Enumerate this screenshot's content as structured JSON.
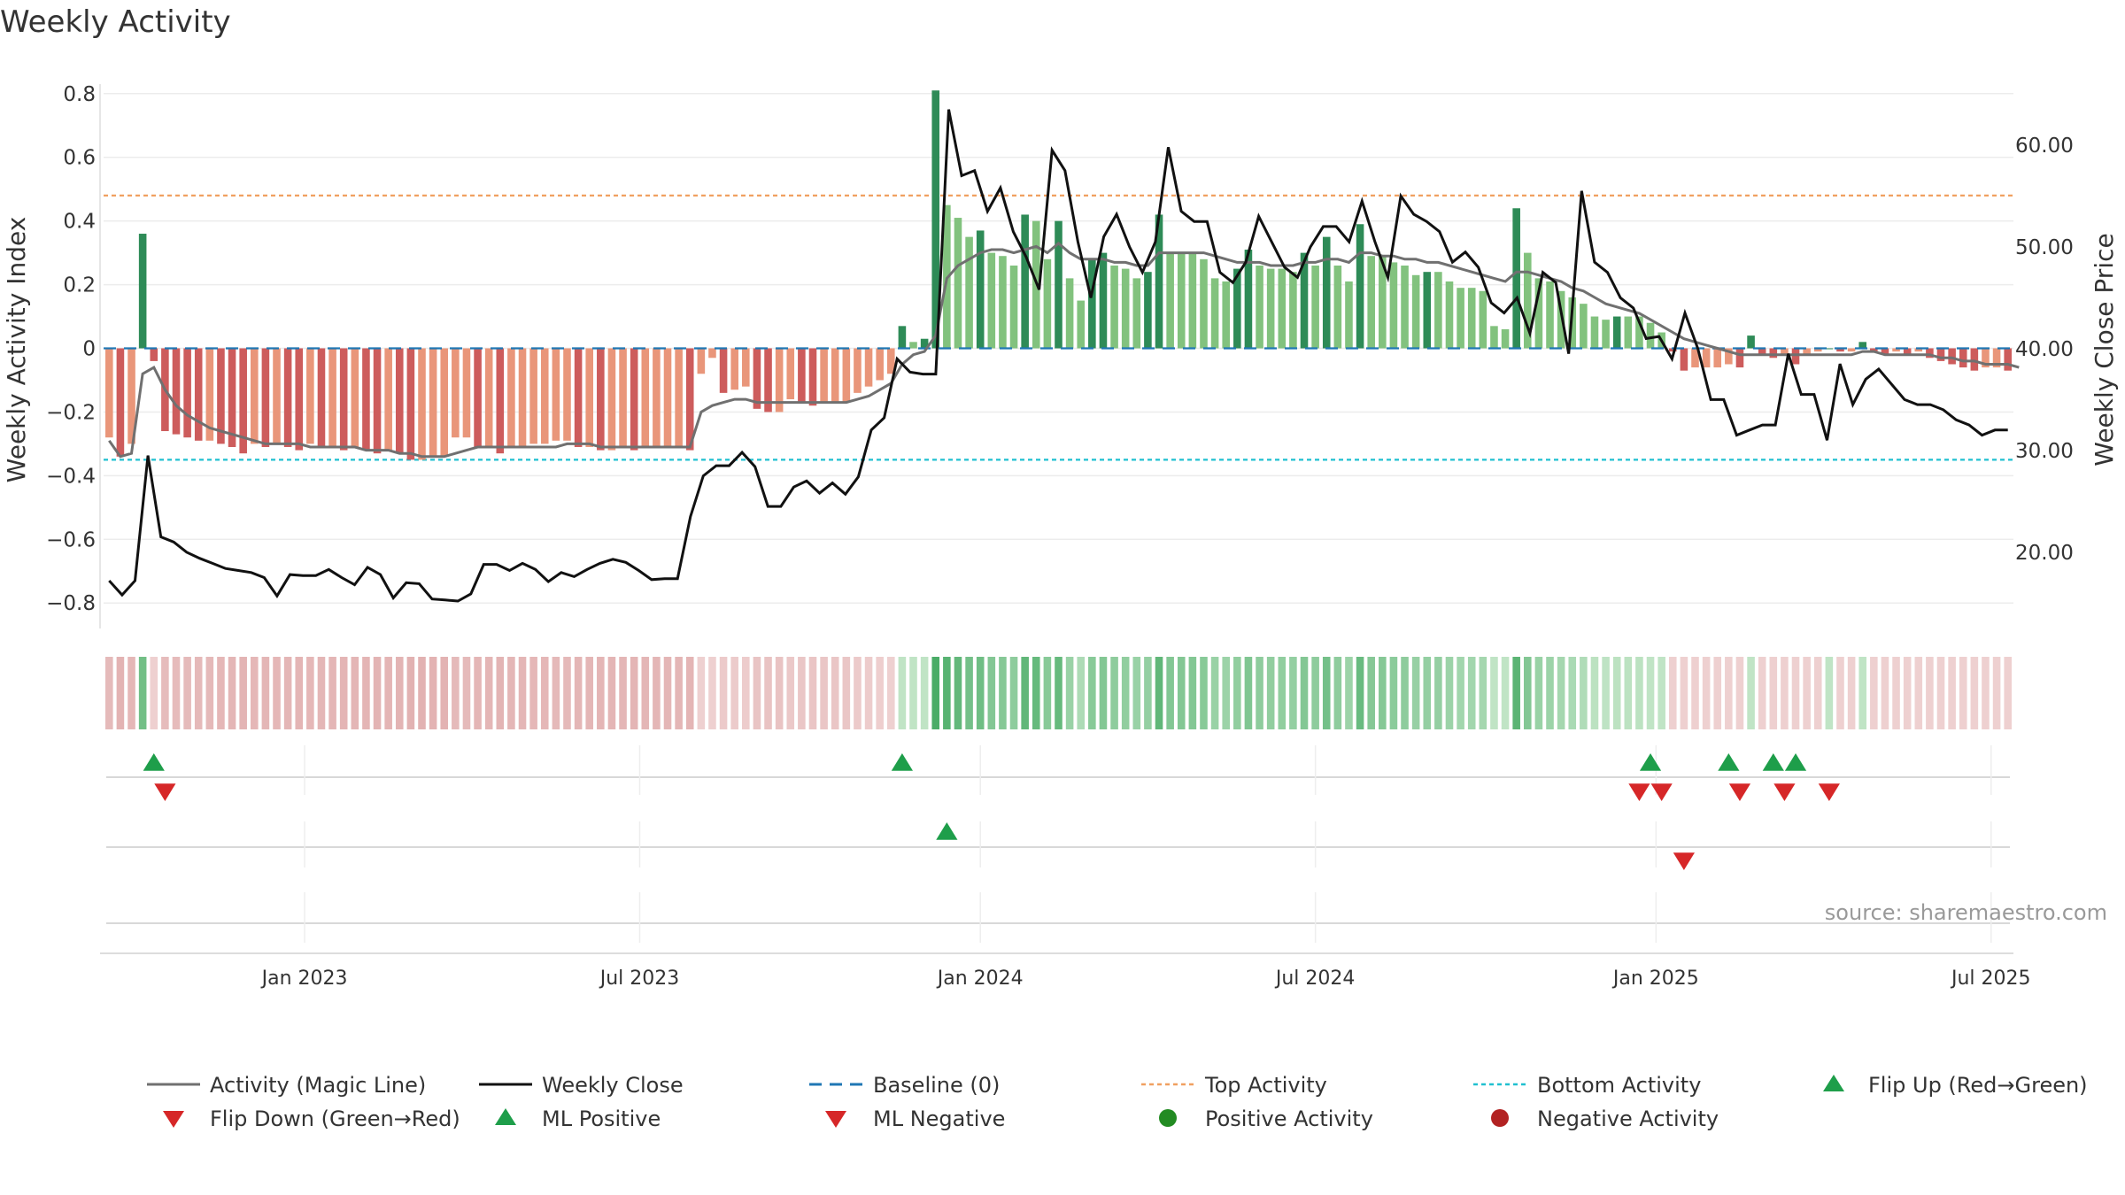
{
  "chart_data": {
    "type": "bar",
    "title": "Weekly Activity",
    "source": "source: sharemaestro.com",
    "ylabel": "Weekly Activity Index",
    "y2label": "Weekly Close Price",
    "ylim": [
      -0.88,
      0.83
    ],
    "y2lim": [
      12.5,
      66.0
    ],
    "yticks": [
      {
        "v": 0.8,
        "label": "0.8"
      },
      {
        "v": 0.6,
        "label": "0.6"
      },
      {
        "v": 0.4,
        "label": "0.4"
      },
      {
        "v": 0.2,
        "label": "0.2"
      },
      {
        "v": 0,
        "label": "0"
      },
      {
        "v": -0.2,
        "label": "−0.2"
      },
      {
        "v": -0.4,
        "label": "−0.4"
      },
      {
        "v": -0.6,
        "label": "−0.6"
      },
      {
        "v": -0.8,
        "label": "−0.8"
      }
    ],
    "y2ticks": [
      {
        "v": 60,
        "label": "60.00"
      },
      {
        "v": 50,
        "label": "50.00"
      },
      {
        "v": 40,
        "label": "40.00"
      },
      {
        "v": 30,
        "label": "30.00"
      },
      {
        "v": 20,
        "label": "20.00"
      }
    ],
    "xticks": [
      {
        "i": 17.5,
        "label": "Jan 2023"
      },
      {
        "i": 47.5,
        "label": "Jul 2023"
      },
      {
        "i": 78,
        "label": "Jan 2024"
      },
      {
        "i": 108,
        "label": "Jul 2024"
      },
      {
        "i": 138.5,
        "label": "Jan 2025"
      },
      {
        "i": 168.5,
        "label": "Jul 2025"
      }
    ],
    "top_activity": 0.48,
    "bottom_activity": -0.35,
    "baseline": 0,
    "activity": [
      -0.28,
      -0.34,
      -0.3,
      0.36,
      -0.04,
      -0.26,
      -0.27,
      -0.28,
      -0.29,
      -0.29,
      -0.3,
      -0.31,
      -0.33,
      -0.3,
      -0.31,
      -0.3,
      -0.31,
      -0.32,
      -0.3,
      -0.31,
      -0.31,
      -0.32,
      -0.31,
      -0.32,
      -0.33,
      -0.32,
      -0.33,
      -0.35,
      -0.35,
      -0.34,
      -0.34,
      -0.28,
      -0.28,
      -0.31,
      -0.31,
      -0.33,
      -0.31,
      -0.31,
      -0.3,
      -0.3,
      -0.29,
      -0.29,
      -0.31,
      -0.31,
      -0.32,
      -0.32,
      -0.31,
      -0.32,
      -0.31,
      -0.31,
      -0.31,
      -0.31,
      -0.32,
      -0.08,
      -0.03,
      -0.14,
      -0.13,
      -0.12,
      -0.19,
      -0.2,
      -0.2,
      -0.16,
      -0.17,
      -0.18,
      -0.17,
      -0.17,
      -0.17,
      -0.14,
      -0.12,
      -0.1,
      -0.08,
      0.07,
      0.02,
      0.03,
      0.81,
      0.45,
      0.41,
      0.35,
      0.37,
      0.3,
      0.29,
      0.26,
      0.42,
      0.4,
      0.28,
      0.4,
      0.22,
      0.15,
      0.28,
      0.3,
      0.26,
      0.25,
      0.22,
      0.24,
      0.42,
      0.3,
      0.3,
      0.3,
      0.28,
      0.22,
      0.21,
      0.25,
      0.31,
      0.26,
      0.25,
      0.25,
      0.24,
      0.3,
      0.26,
      0.35,
      0.26,
      0.21,
      0.39,
      0.29,
      0.29,
      0.27,
      0.26,
      0.23,
      0.24,
      0.24,
      0.21,
      0.19,
      0.19,
      0.18,
      0.07,
      0.06,
      0.44,
      0.3,
      0.22,
      0.21,
      0.18,
      0.16,
      0.14,
      0.1,
      0.09,
      0.1,
      0.1,
      0.1,
      0.08,
      0.05,
      -0.01,
      -0.07,
      -0.06,
      -0.06,
      -0.06,
      -0.05,
      -0.06,
      0.04,
      -0.02,
      -0.03,
      -0.02,
      -0.05,
      -0.02,
      -0.01,
      0.0,
      -0.01,
      -0.01,
      0.02,
      -0.01,
      -0.02,
      -0.01,
      -0.02,
      -0.01,
      -0.03,
      -0.04,
      -0.05,
      -0.06,
      -0.07,
      -0.06,
      -0.06,
      -0.07
    ],
    "magic_line": [
      -0.29,
      -0.34,
      -0.33,
      -0.08,
      -0.06,
      -0.13,
      -0.18,
      -0.21,
      -0.23,
      -0.25,
      -0.26,
      -0.27,
      -0.28,
      -0.29,
      -0.3,
      -0.3,
      -0.3,
      -0.3,
      -0.31,
      -0.31,
      -0.31,
      -0.31,
      -0.31,
      -0.32,
      -0.32,
      -0.32,
      -0.33,
      -0.33,
      -0.34,
      -0.34,
      -0.34,
      -0.33,
      -0.32,
      -0.31,
      -0.31,
      -0.31,
      -0.31,
      -0.31,
      -0.31,
      -0.31,
      -0.31,
      -0.3,
      -0.3,
      -0.3,
      -0.31,
      -0.31,
      -0.31,
      -0.31,
      -0.31,
      -0.31,
      -0.31,
      -0.31,
      -0.31,
      -0.2,
      -0.18,
      -0.17,
      -0.16,
      -0.16,
      -0.17,
      -0.17,
      -0.17,
      -0.17,
      -0.17,
      -0.17,
      -0.17,
      -0.17,
      -0.17,
      -0.16,
      -0.15,
      -0.13,
      -0.11,
      -0.05,
      -0.02,
      -0.01,
      0.04,
      0.22,
      0.26,
      0.28,
      0.3,
      0.31,
      0.31,
      0.3,
      0.31,
      0.32,
      0.3,
      0.33,
      0.3,
      0.28,
      0.28,
      0.28,
      0.27,
      0.27,
      0.26,
      0.26,
      0.3,
      0.3,
      0.3,
      0.3,
      0.3,
      0.29,
      0.28,
      0.27,
      0.27,
      0.27,
      0.26,
      0.26,
      0.26,
      0.27,
      0.27,
      0.28,
      0.28,
      0.27,
      0.3,
      0.3,
      0.29,
      0.29,
      0.28,
      0.28,
      0.27,
      0.27,
      0.26,
      0.25,
      0.24,
      0.23,
      0.22,
      0.21,
      0.24,
      0.24,
      0.23,
      0.22,
      0.21,
      0.19,
      0.18,
      0.16,
      0.14,
      0.13,
      0.12,
      0.11,
      0.09,
      0.07,
      0.05,
      0.03,
      0.02,
      0.01,
      0.0,
      -0.01,
      -0.02,
      -0.02,
      -0.02,
      -0.02,
      -0.02,
      -0.02,
      -0.02,
      -0.02,
      -0.02,
      -0.02,
      -0.02,
      -0.01,
      -0.01,
      -0.02,
      -0.02,
      -0.02,
      -0.02,
      -0.02,
      -0.03,
      -0.03,
      -0.04,
      -0.04,
      -0.05,
      -0.05,
      -0.05,
      -0.06
    ],
    "weekly_close": [
      17.2,
      15.8,
      17.2,
      29.5,
      21.5,
      21.0,
      20.0,
      19.4,
      18.9,
      18.4,
      18.2,
      18.0,
      17.5,
      15.7,
      17.8,
      17.7,
      17.7,
      18.3,
      17.5,
      16.8,
      18.5,
      17.8,
      15.5,
      17.0,
      16.9,
      15.4,
      15.3,
      15.2,
      15.9,
      18.8,
      18.8,
      18.2,
      18.9,
      18.3,
      17.1,
      18.0,
      17.6,
      18.3,
      18.9,
      19.3,
      19.0,
      18.2,
      17.3,
      17.4,
      17.4,
      23.5,
      27.5,
      28.5,
      28.5,
      29.8,
      28.4,
      24.5,
      24.5,
      26.4,
      27.0,
      25.8,
      26.8,
      25.7,
      27.4,
      32.0,
      33.2,
      39.0,
      37.7,
      37.5,
      37.5,
      63.5,
      57.0,
      57.5,
      53.5,
      55.8,
      51.5,
      49.0,
      45.8,
      59.5,
      57.5,
      50.5,
      45.0,
      51.0,
      53.2,
      50.0,
      47.5,
      50.5,
      59.8,
      53.5,
      52.5,
      52.5,
      47.5,
      46.5,
      48.5,
      53.0,
      50.5,
      48.0,
      47.0,
      50.0,
      52.0,
      52.0,
      50.5,
      54.5,
      50.5,
      47.0,
      55.0,
      53.2,
      52.5,
      51.5,
      48.5,
      49.5,
      48.0,
      44.5,
      43.5,
      45.0,
      41.5,
      47.5,
      46.5,
      39.5,
      55.5,
      48.5,
      47.5,
      45.0,
      44.0,
      41.0,
      41.2,
      39.0,
      43.5,
      40.0,
      35.0,
      35.0,
      31.5,
      32.0,
      32.5,
      32.5,
      39.5,
      35.5,
      35.5,
      31.0,
      38.5,
      34.5,
      37.0,
      38.0,
      36.5,
      35.0,
      34.5,
      34.5,
      34.0,
      33.0,
      32.5,
      31.5,
      32.0,
      32.0
    ],
    "weekly_close_first_index": 0,
    "strip_colors_note": "heat strip shows each week's activity sign and magnitude",
    "flip_up": [
      4,
      71,
      138,
      145,
      149,
      151
    ],
    "flip_down": [
      5,
      137,
      139,
      146,
      150,
      154
    ],
    "ml_positive": [
      75
    ],
    "ml_negative": [
      141
    ],
    "positive_activity": [],
    "negative_activity": [],
    "colors": {
      "pos_dark": "#2e8b57",
      "pos_light": "#82c27e",
      "neg_dark": "#cd5c5c",
      "neg_light": "#e9967a",
      "magic_line": "#707070",
      "close": "#111111",
      "baseline": "#1f77b4",
      "top": "#f0a060",
      "bottom": "#20c0d0",
      "marker_up": "#1e9e4a",
      "marker_down": "#d62728",
      "pos_dot": "#228b22",
      "neg_dot": "#b22222"
    },
    "legend": [
      {
        "key": "magic",
        "label": "Activity (Magic Line)"
      },
      {
        "key": "close",
        "label": "Weekly Close"
      },
      {
        "key": "baseline",
        "label": "Baseline (0)"
      },
      {
        "key": "top",
        "label": "Top Activity"
      },
      {
        "key": "bottom",
        "label": "Bottom Activity"
      },
      {
        "key": "flipup",
        "label": "Flip Up (Red→Green)"
      },
      {
        "key": "flipdown",
        "label": "Flip Down (Green→Red)"
      },
      {
        "key": "mlpos",
        "label": "ML Positive"
      },
      {
        "key": "mlneg",
        "label": "ML Negative"
      },
      {
        "key": "posdot",
        "label": "Positive Activity"
      },
      {
        "key": "negdot",
        "label": "Negative Activity"
      }
    ],
    "legend_position": "bottom"
  }
}
